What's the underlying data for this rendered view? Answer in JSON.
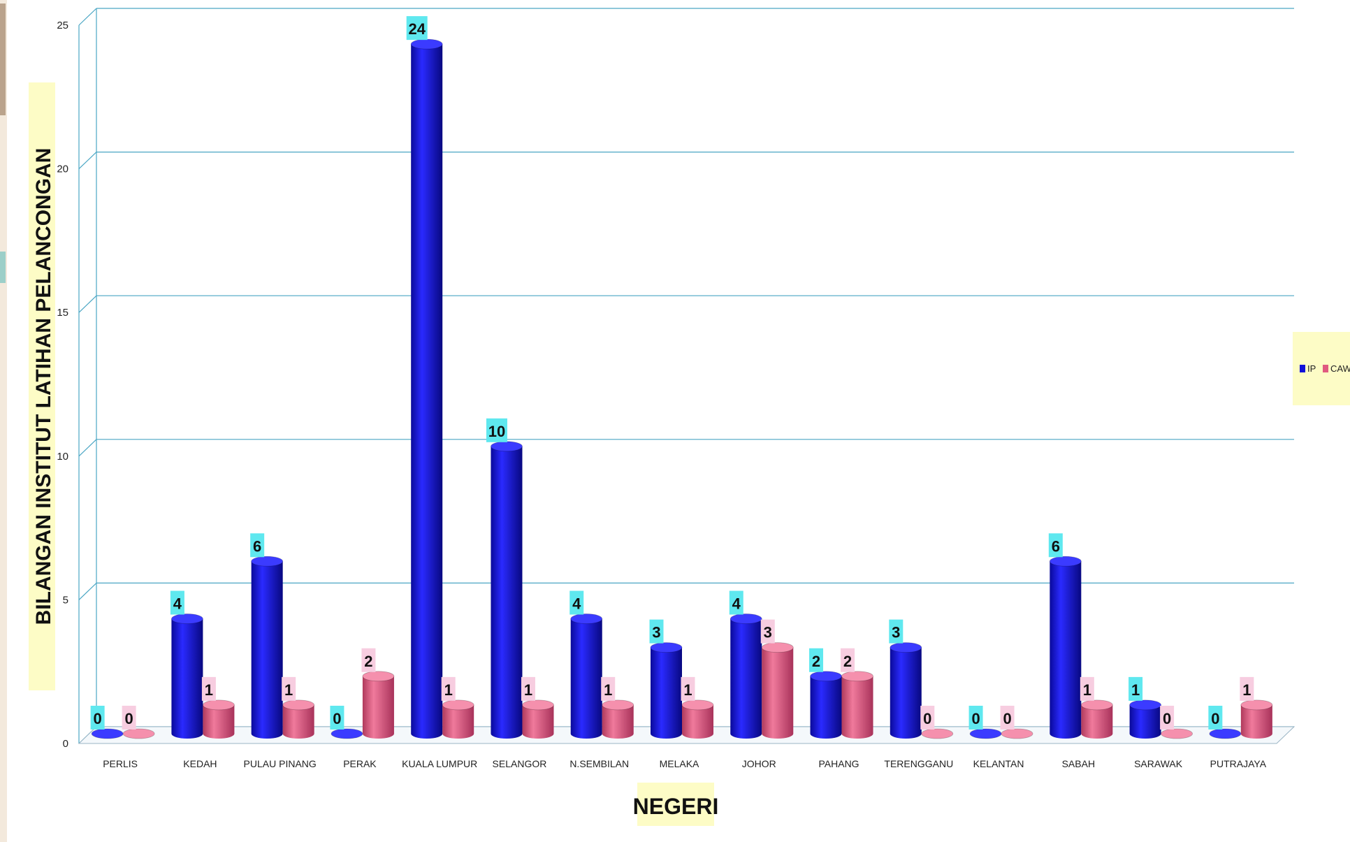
{
  "chart_data": {
    "type": "bar",
    "categories": [
      "PERLIS",
      "KEDAH",
      "PULAU PINANG",
      "PERAK",
      "KUALA LUMPUR",
      "SELANGOR",
      "N.SEMBILAN",
      "MELAKA",
      "JOHOR",
      "PAHANG",
      "TERENGGANU",
      "KELANTAN",
      "SABAH",
      "SARAWAK",
      "PUTRAJAYA"
    ],
    "series": [
      {
        "name": "IP",
        "color": "#1010d8",
        "values": [
          0,
          4,
          6,
          0,
          24,
          10,
          4,
          3,
          4,
          2,
          3,
          0,
          6,
          1,
          0
        ]
      },
      {
        "name": "CAW",
        "color": "#e05a80",
        "values": [
          0,
          1,
          1,
          2,
          1,
          1,
          1,
          1,
          3,
          2,
          0,
          0,
          1,
          0,
          1
        ]
      }
    ],
    "title": "",
    "xlabel": "NEGERI",
    "ylabel": "BILANGAN INSTITUT LATIHAN PELANCONGAN",
    "ylim": [
      0,
      25
    ],
    "yticks": [
      0,
      5,
      10,
      15,
      20,
      25
    ],
    "grid": true,
    "legend_position": "right",
    "label_colors": {
      "IP": "#5fe8ef",
      "CAW": "#f7cde0"
    }
  }
}
